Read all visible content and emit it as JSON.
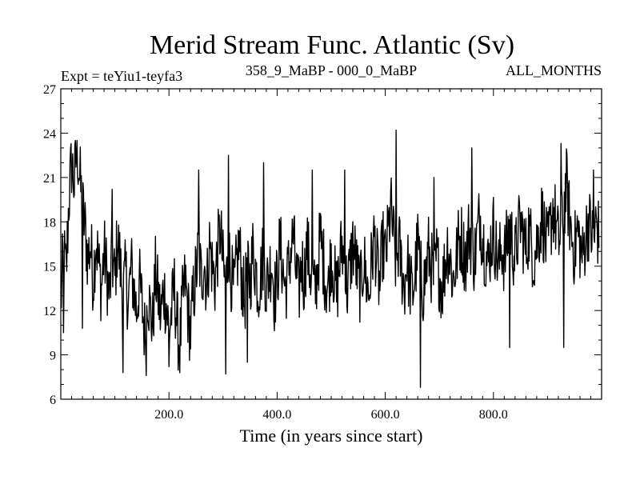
{
  "chart_data": {
    "type": "line",
    "title": "Merid Stream Func. Atlantic (Sv)",
    "subtitle_left": "Expt = teYiu1-teyfa3",
    "subtitle_center": "358_9_MaBP - 000_0_MaBP",
    "subtitle_right": "ALL_MONTHS",
    "xlabel": "Time (in years since start)",
    "ylabel": "",
    "xlim": [
      0,
      1000
    ],
    "ylim": [
      6,
      27
    ],
    "xticks": [
      200,
      400,
      600,
      800
    ],
    "xtick_labels": [
      "200.0",
      "400.0",
      "600.0",
      "800.0"
    ],
    "yticks": [
      6,
      9,
      12,
      15,
      18,
      21,
      24,
      27
    ],
    "ytick_labels": [
      "6",
      "9",
      "12",
      "15",
      "18",
      "21",
      "24",
      "27"
    ],
    "series": [
      {
        "name": "stream_function",
        "color": "#000000",
        "note": "approximate annual values, read from the plot",
        "x_start": 0,
        "x_step": 5,
        "values": [
          12.5,
          16.0,
          14.5,
          19.5,
          22.0,
          20.5,
          23.2,
          21.0,
          19.0,
          17.5,
          15.5,
          16.5,
          14.0,
          17.0,
          15.0,
          13.5,
          16.0,
          14.5,
          13.0,
          15.5,
          14.0,
          17.0,
          15.0,
          13.0,
          14.5,
          12.5,
          15.0,
          13.5,
          12.0,
          14.0,
          12.5,
          10.5,
          13.5,
          12.0,
          11.0,
          14.5,
          13.0,
          11.5,
          13.5,
          12.5,
          10.5,
          12.0,
          13.5,
          11.0,
          9.5,
          12.5,
          14.0,
          12.0,
          10.5,
          13.0,
          14.5,
          16.0,
          14.0,
          15.5,
          13.5,
          16.5,
          15.0,
          14.0,
          16.0,
          17.5,
          15.0,
          13.5,
          16.0,
          14.5,
          13.0,
          15.0,
          16.5,
          14.0,
          12.5,
          15.5,
          14.0,
          16.0,
          15.0,
          13.5,
          14.5,
          16.0,
          13.5,
          14.5,
          15.5,
          13.0,
          14.0,
          16.5,
          15.0,
          13.5,
          14.5,
          16.0,
          17.0,
          14.5,
          13.0,
          15.5,
          14.0,
          16.5,
          15.0,
          14.0,
          13.0,
          15.0,
          17.0,
          15.5,
          14.0,
          13.5,
          16.0,
          14.5,
          13.0,
          15.0,
          16.5,
          14.5,
          13.5,
          15.0,
          16.5,
          15.5,
          14.0,
          13.5,
          15.5,
          14.0,
          13.0,
          15.5,
          17.0,
          15.0,
          13.5,
          16.5,
          15.5,
          17.0,
          19.0,
          17.0,
          15.0,
          16.5,
          15.0,
          13.5,
          15.5,
          14.0,
          13.0,
          14.5,
          16.5,
          15.0,
          13.5,
          14.5,
          16.0,
          15.0,
          14.0,
          15.5,
          14.5,
          13.5,
          15.0,
          16.5,
          15.5,
          14.0,
          15.0,
          16.5,
          17.0,
          16.0,
          15.5,
          17.5,
          16.5,
          15.5,
          17.0,
          18.5,
          17.0,
          16.0,
          15.0,
          16.5,
          17.5,
          16.0,
          15.0,
          16.5,
          15.5,
          16.5,
          18.0,
          16.5,
          15.5,
          17.0,
          18.0,
          17.0,
          16.0,
          17.5,
          16.5,
          15.5,
          16.5,
          17.5,
          18.5,
          17.0,
          16.0,
          17.5,
          19.0,
          18.0,
          16.5,
          17.5,
          19.0,
          20.5,
          18.5,
          17.0,
          16.0,
          17.5,
          16.5,
          15.5,
          17.0,
          18.0,
          17.5,
          16.5,
          18.0,
          17.0
        ],
        "spikes": [
          {
            "x": 5,
            "y": 10.5
          },
          {
            "x": 30,
            "y": 23.5
          },
          {
            "x": 40,
            "y": 10.8
          },
          {
            "x": 95,
            "y": 20.2
          },
          {
            "x": 115,
            "y": 7.8
          },
          {
            "x": 158,
            "y": 7.6
          },
          {
            "x": 200,
            "y": 8.2
          },
          {
            "x": 255,
            "y": 21.5
          },
          {
            "x": 305,
            "y": 7.7
          },
          {
            "x": 310,
            "y": 22.5
          },
          {
            "x": 345,
            "y": 8.5
          },
          {
            "x": 375,
            "y": 22.0
          },
          {
            "x": 465,
            "y": 21.5
          },
          {
            "x": 525,
            "y": 21.5
          },
          {
            "x": 620,
            "y": 24.2
          },
          {
            "x": 665,
            "y": 6.8
          },
          {
            "x": 690,
            "y": 21.0
          },
          {
            "x": 760,
            "y": 23.0
          },
          {
            "x": 830,
            "y": 9.5
          },
          {
            "x": 925,
            "y": 23.3
          },
          {
            "x": 930,
            "y": 9.5
          },
          {
            "x": 985,
            "y": 21.5
          }
        ]
      }
    ]
  }
}
